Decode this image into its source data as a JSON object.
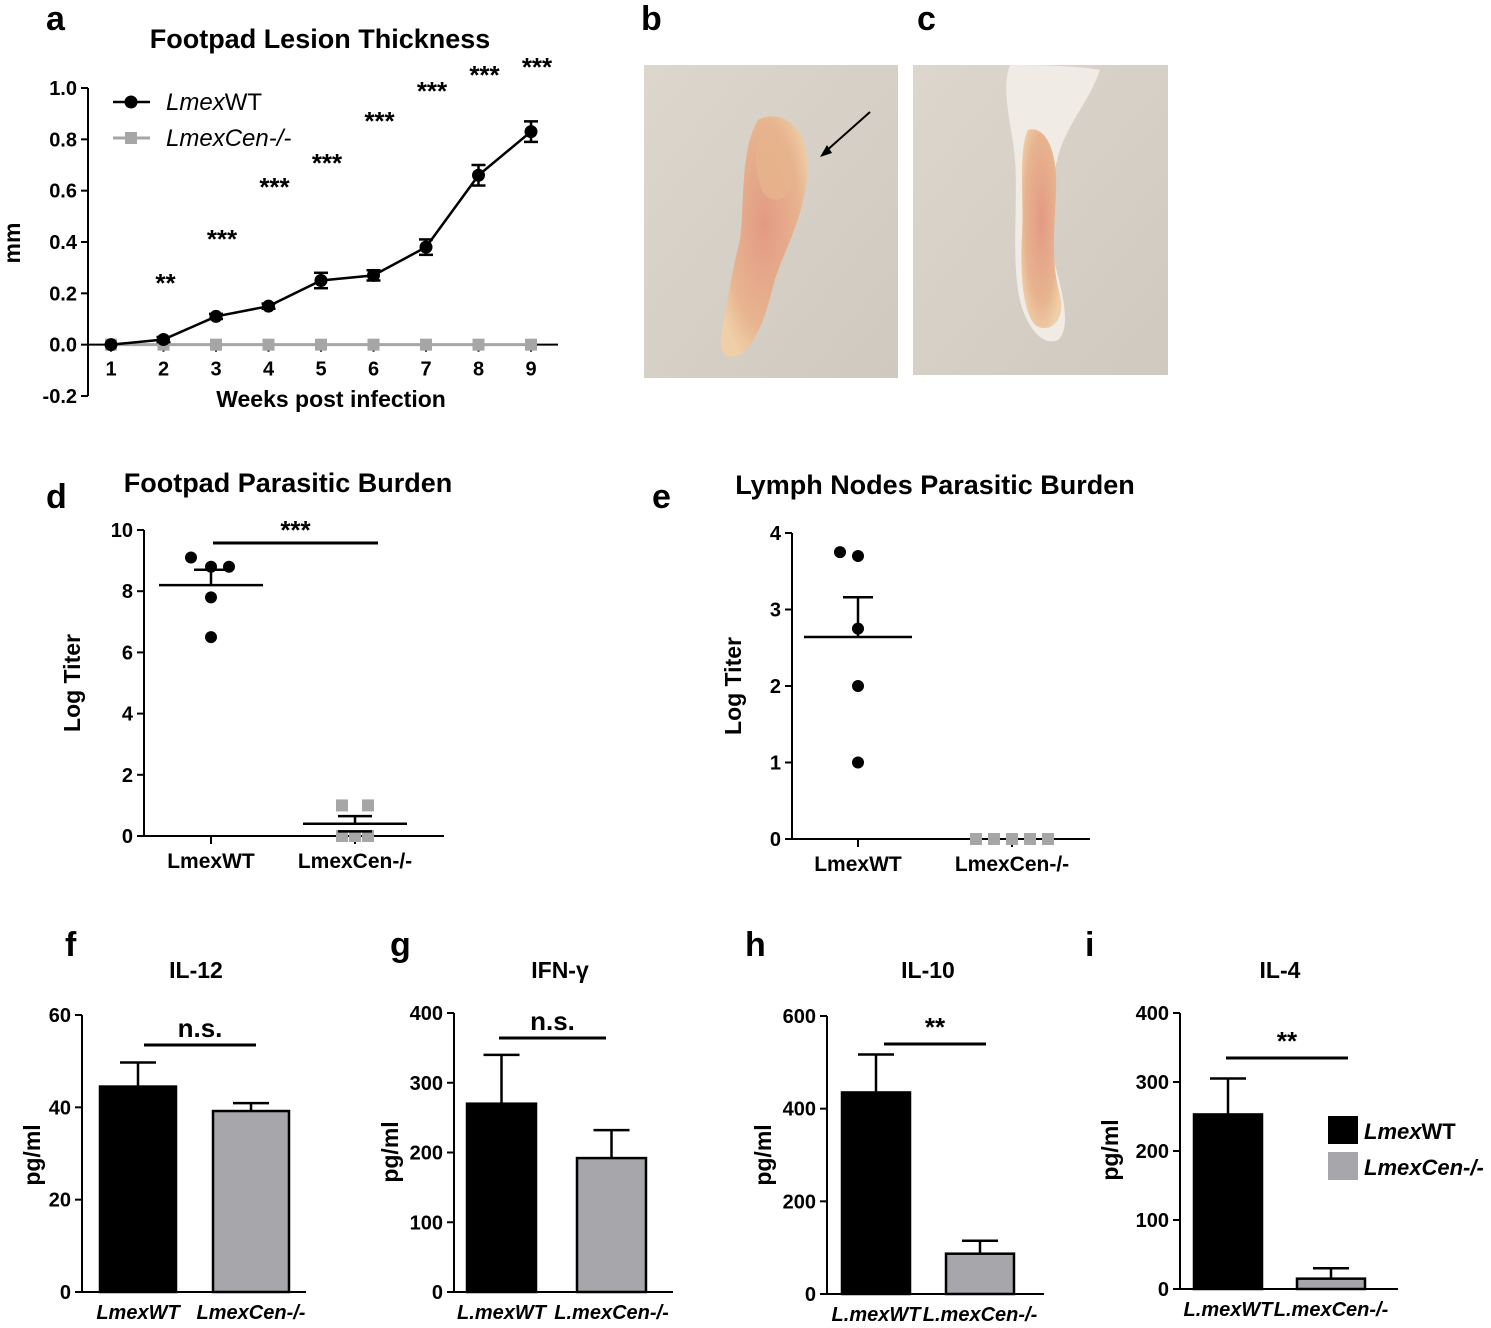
{
  "panel_labels": [
    "a",
    "b",
    "c",
    "d",
    "e",
    "f",
    "g",
    "h",
    "i"
  ],
  "colors": {
    "wt": "#000000",
    "cen": "#a6a6a6",
    "cen_bar": "#a6a6ab",
    "photo_bg": "#d6d0c6",
    "paw": "#e8a78c"
  },
  "photos": {
    "b": {
      "description_icon": "infected-footpad-photo",
      "arrow": true
    },
    "c": {
      "description_icon": "uninfected-footpad-photo",
      "arrow": false
    }
  },
  "chart_data": [
    {
      "id": "a",
      "type": "line",
      "title": "Footpad Lesion Thickness",
      "xlabel": "Weeks post infection",
      "ylabel": "mm",
      "ylim": [
        -0.2,
        1.0
      ],
      "yticks": [
        "-0.2",
        "0.0",
        "0.2",
        "0.4",
        "0.6",
        "0.8",
        "1.0"
      ],
      "x": [
        1,
        2,
        3,
        4,
        5,
        6,
        7,
        8,
        9
      ],
      "xticks": [
        "1",
        "2",
        "3",
        "4",
        "5",
        "6",
        "7",
        "8",
        "9"
      ],
      "legend_position": "top-left",
      "series": [
        {
          "name_italic": "Lmex",
          "name_plain": "WT",
          "marker": "circle",
          "values": [
            0.0,
            0.02,
            0.11,
            0.15,
            0.25,
            0.27,
            0.38,
            0.66,
            0.83
          ],
          "errors": [
            0.0,
            0.01,
            0.01,
            0.01,
            0.03,
            0.02,
            0.03,
            0.04,
            0.04
          ]
        },
        {
          "name_italic": "LmexCen-/-",
          "name_plain": "",
          "marker": "square",
          "values": [
            0,
            0,
            0,
            0,
            0,
            0,
            0,
            0,
            0
          ],
          "errors": [
            0,
            0,
            0,
            0,
            0,
            0,
            0,
            0,
            0
          ]
        }
      ],
      "significance": [
        {
          "x": 2,
          "label": "**"
        },
        {
          "x": 3,
          "label": "***"
        },
        {
          "x": 4,
          "label": "***"
        },
        {
          "x": 5,
          "label": "***"
        },
        {
          "x": 6,
          "label": "***"
        },
        {
          "x": 7,
          "label": "***"
        },
        {
          "x": 8,
          "label": "***"
        },
        {
          "x": 9,
          "label": "***"
        }
      ]
    },
    {
      "id": "d",
      "type": "scatter",
      "title": "Footpad Parasitic Burden",
      "xlabel": "",
      "ylabel": "Log Titer",
      "ylim": [
        0,
        10
      ],
      "yticks": [
        "0",
        "2",
        "4",
        "6",
        "8",
        "10"
      ],
      "categories": [
        "LmexWT",
        "LmexCen-/-"
      ],
      "series": [
        {
          "marker": "circle",
          "points": [
            9.1,
            8.8,
            8.8,
            7.8,
            6.5
          ],
          "mean": 8.2,
          "sem": 0.5
        },
        {
          "marker": "square",
          "points": [
            1.0,
            1.0,
            0.0,
            0.0,
            0.0
          ],
          "mean": 0.4,
          "sem": 0.25
        }
      ],
      "significance": [
        {
          "label": "***"
        }
      ]
    },
    {
      "id": "e",
      "type": "scatter",
      "title": "Lymph Nodes Parasitic Burden",
      "xlabel": "",
      "ylabel": "Log Titer",
      "ylim": [
        0,
        4
      ],
      "yticks": [
        "0",
        "1",
        "2",
        "3",
        "4"
      ],
      "categories": [
        "LmexWT",
        "LmexCen-/-"
      ],
      "series": [
        {
          "marker": "circle",
          "points": [
            3.75,
            3.7,
            2.75,
            2.0,
            1.0
          ],
          "mean": 2.64,
          "sem": 0.52
        },
        {
          "marker": "square",
          "points": [
            0,
            0,
            0,
            0,
            0
          ],
          "mean": 0,
          "sem": 0
        }
      ],
      "significance": []
    },
    {
      "id": "f",
      "type": "bar",
      "title": "IL-12",
      "ylabel": "pg/ml",
      "ylim": [
        0,
        60
      ],
      "yticks": [
        "0",
        "20",
        "40",
        "60"
      ],
      "categories": [
        "LmexWT",
        "LmexCen-/-"
      ],
      "values": [
        44.5,
        39.2
      ],
      "errors": [
        5.2,
        1.7
      ],
      "significance": "n.s."
    },
    {
      "id": "g",
      "type": "bar",
      "title": "IFN-γ",
      "ylabel": "pg/ml",
      "ylim": [
        0,
        400
      ],
      "yticks": [
        "0",
        "100",
        "200",
        "300",
        "400"
      ],
      "categories": [
        "L.mexWT",
        "L.mexCen-/-"
      ],
      "values": [
        270,
        192
      ],
      "errors": [
        70,
        40
      ],
      "significance": "n.s."
    },
    {
      "id": "h",
      "type": "bar",
      "title": "IL-10",
      "ylabel": "pg/ml",
      "ylim": [
        0,
        600
      ],
      "yticks": [
        "0",
        "200",
        "400",
        "600"
      ],
      "categories": [
        "L.mexWT",
        "L.mexCen-/-"
      ],
      "values": [
        435,
        87
      ],
      "errors": [
        82,
        28
      ],
      "significance": "**"
    },
    {
      "id": "i",
      "type": "bar",
      "title": "IL-4",
      "ylabel": "pg/ml",
      "ylim": [
        0,
        400
      ],
      "yticks": [
        "0",
        "100",
        "200",
        "300",
        "400"
      ],
      "categories": [
        "L.mexWT",
        "L.mexCen-/-"
      ],
      "values": [
        253,
        15
      ],
      "errors": [
        52,
        15
      ],
      "significance": "**",
      "legend": [
        {
          "name_italic": "Lmex",
          "name_plain": "WT"
        },
        {
          "name_italic": "LmexCen-/-",
          "name_plain": ""
        }
      ]
    }
  ]
}
